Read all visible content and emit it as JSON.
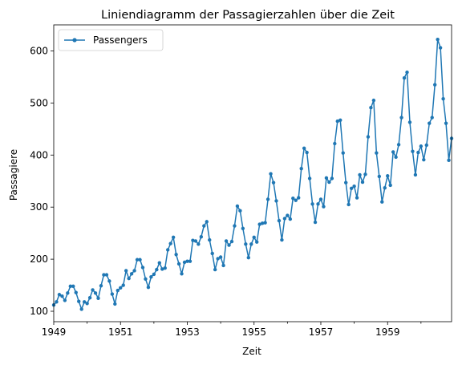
{
  "chart_data": {
    "type": "line",
    "title": "Liniendiagramm der Passagierzahlen über die Zeit",
    "xlabel": "Zeit",
    "ylabel": "Passagiere",
    "xlim": [
      "1949-01",
      "1960-12"
    ],
    "ylim": [
      80,
      650
    ],
    "x_ticks": [
      "1949",
      "1951",
      "1953",
      "1955",
      "1957",
      "1959"
    ],
    "y_ticks": [
      100,
      200,
      300,
      400,
      500,
      600
    ],
    "grid": false,
    "legend": "top-left",
    "colors": {
      "series": "#1f77b4"
    },
    "x_start": "1949-01",
    "series": [
      {
        "name": "Passengers",
        "marker": "circle",
        "values": [
          112,
          118,
          132,
          129,
          121,
          135,
          148,
          148,
          136,
          119,
          104,
          118,
          115,
          126,
          141,
          135,
          125,
          149,
          170,
          170,
          158,
          133,
          114,
          140,
          145,
          150,
          178,
          163,
          172,
          178,
          199,
          199,
          184,
          162,
          146,
          166,
          171,
          180,
          193,
          181,
          183,
          218,
          230,
          242,
          209,
          191,
          172,
          194,
          196,
          196,
          236,
          235,
          229,
          243,
          264,
          272,
          237,
          211,
          180,
          201,
          204,
          188,
          235,
          227,
          234,
          264,
          302,
          293,
          259,
          229,
          203,
          229,
          242,
          233,
          267,
          269,
          270,
          315,
          364,
          347,
          312,
          274,
          237,
          278,
          284,
          277,
          317,
          313,
          318,
          374,
          413,
          405,
          355,
          306,
          271,
          306,
          315,
          301,
          356,
          348,
          355,
          422,
          465,
          467,
          404,
          347,
          305,
          336,
          340,
          318,
          362,
          348,
          363,
          435,
          491,
          505,
          404,
          359,
          310,
          337,
          360,
          342,
          406,
          396,
          420,
          472,
          548,
          559,
          463,
          407,
          362,
          405,
          417,
          391,
          419,
          461,
          472,
          535,
          622,
          606,
          508,
          461,
          390,
          432
        ]
      }
    ]
  }
}
